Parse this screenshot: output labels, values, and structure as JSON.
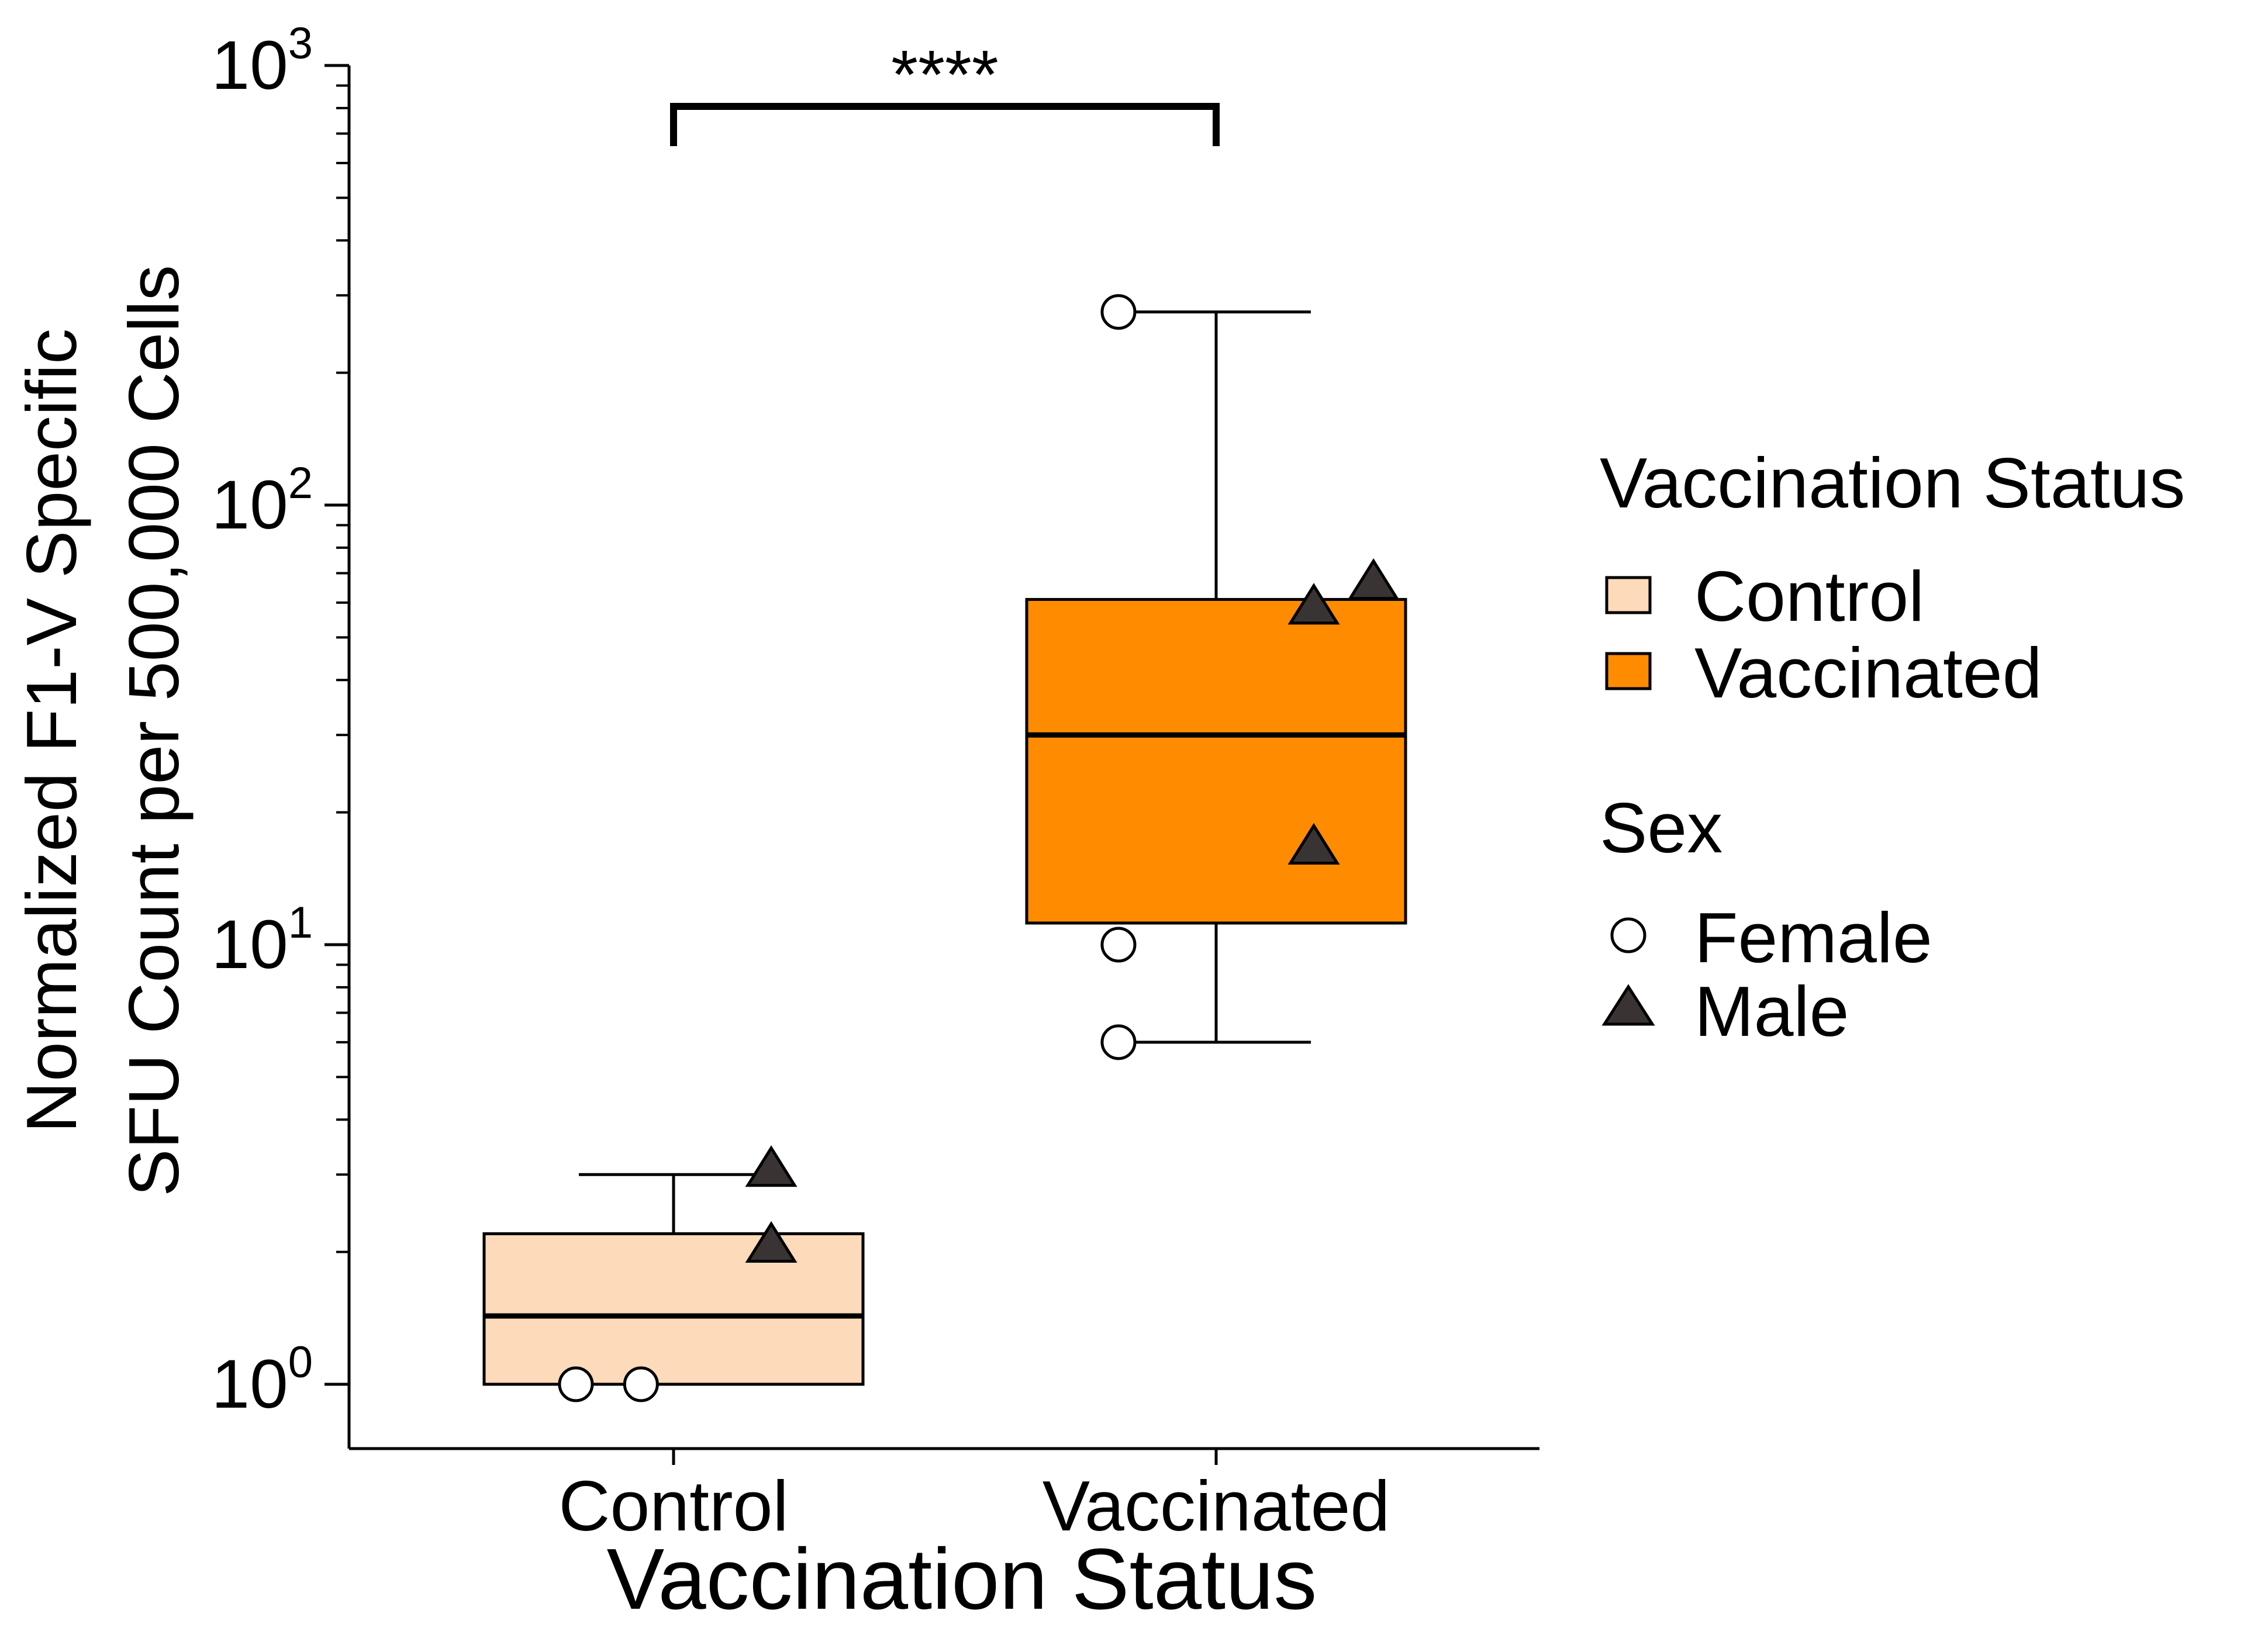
{
  "chart_data": {
    "type": "box",
    "title": "",
    "xlabel": "Vaccination Status",
    "ylabel_lines": [
      "Normalized F1-V Specific",
      "SFU Count per 500,000 Cells"
    ],
    "y_scale": "log10",
    "ylim": [
      0.75,
      1000
    ],
    "y_ticks": [
      {
        "value": 1,
        "base": "10",
        "exp": "0"
      },
      {
        "value": 10,
        "base": "10",
        "exp": "1"
      },
      {
        "value": 100,
        "base": "10",
        "exp": "2"
      },
      {
        "value": 1000,
        "base": "10",
        "exp": "3"
      }
    ],
    "y_minor_ticks": [
      2,
      3,
      4,
      5,
      6,
      7,
      8,
      9,
      20,
      30,
      40,
      50,
      60,
      70,
      80,
      90,
      200,
      300,
      400,
      500,
      600,
      700,
      800,
      900
    ],
    "categories": [
      "Control",
      "Vaccinated"
    ],
    "boxes": [
      {
        "category": "Control",
        "color": "#FDDAB9",
        "whisker_low": 1,
        "q1": 1,
        "median": 1.43,
        "q3": 2.2,
        "whisker_high": 3.0
      },
      {
        "category": "Vaccinated",
        "color": "#FF8C00",
        "whisker_low": 6,
        "q1": 11.2,
        "median": 30,
        "q3": 61,
        "whisker_high": 275
      }
    ],
    "points": [
      {
        "category": "Control",
        "sex": "Female",
        "y": 1.0,
        "jitter": -0.18
      },
      {
        "category": "Control",
        "sex": "Female",
        "y": 1.0,
        "jitter": -0.06
      },
      {
        "category": "Control",
        "sex": "Male",
        "y": 3.05,
        "jitter": 0.18
      },
      {
        "category": "Control",
        "sex": "Male",
        "y": 2.05,
        "jitter": 0.18
      },
      {
        "category": "Vaccinated",
        "sex": "Female",
        "y": 275,
        "jitter": -0.18
      },
      {
        "category": "Vaccinated",
        "sex": "Female",
        "y": 10,
        "jitter": -0.18
      },
      {
        "category": "Vaccinated",
        "sex": "Female",
        "y": 6,
        "jitter": -0.18
      },
      {
        "category": "Vaccinated",
        "sex": "Male",
        "y": 58,
        "jitter": 0.18
      },
      {
        "category": "Vaccinated",
        "sex": "Male",
        "y": 66,
        "jitter": 0.29
      },
      {
        "category": "Vaccinated",
        "sex": "Male",
        "y": 16.5,
        "jitter": 0.18
      }
    ],
    "significance": {
      "from": "Control",
      "to": "Vaccinated",
      "label": "****",
      "y": 750
    },
    "legend": {
      "placement": "right",
      "fill_title": "Vaccination Status",
      "fill_items": [
        {
          "label": "Control",
          "color": "#FDDAB9"
        },
        {
          "label": "Vaccinated",
          "color": "#FF8C00"
        }
      ],
      "shape_title": "Sex",
      "shape_items": [
        {
          "label": "Female",
          "shape": "circle"
        },
        {
          "label": "Male",
          "shape": "triangle"
        }
      ]
    },
    "colors": {
      "male_fill": "#3a3333",
      "female_fill": "#ffffff",
      "stroke": "#000000"
    }
  }
}
